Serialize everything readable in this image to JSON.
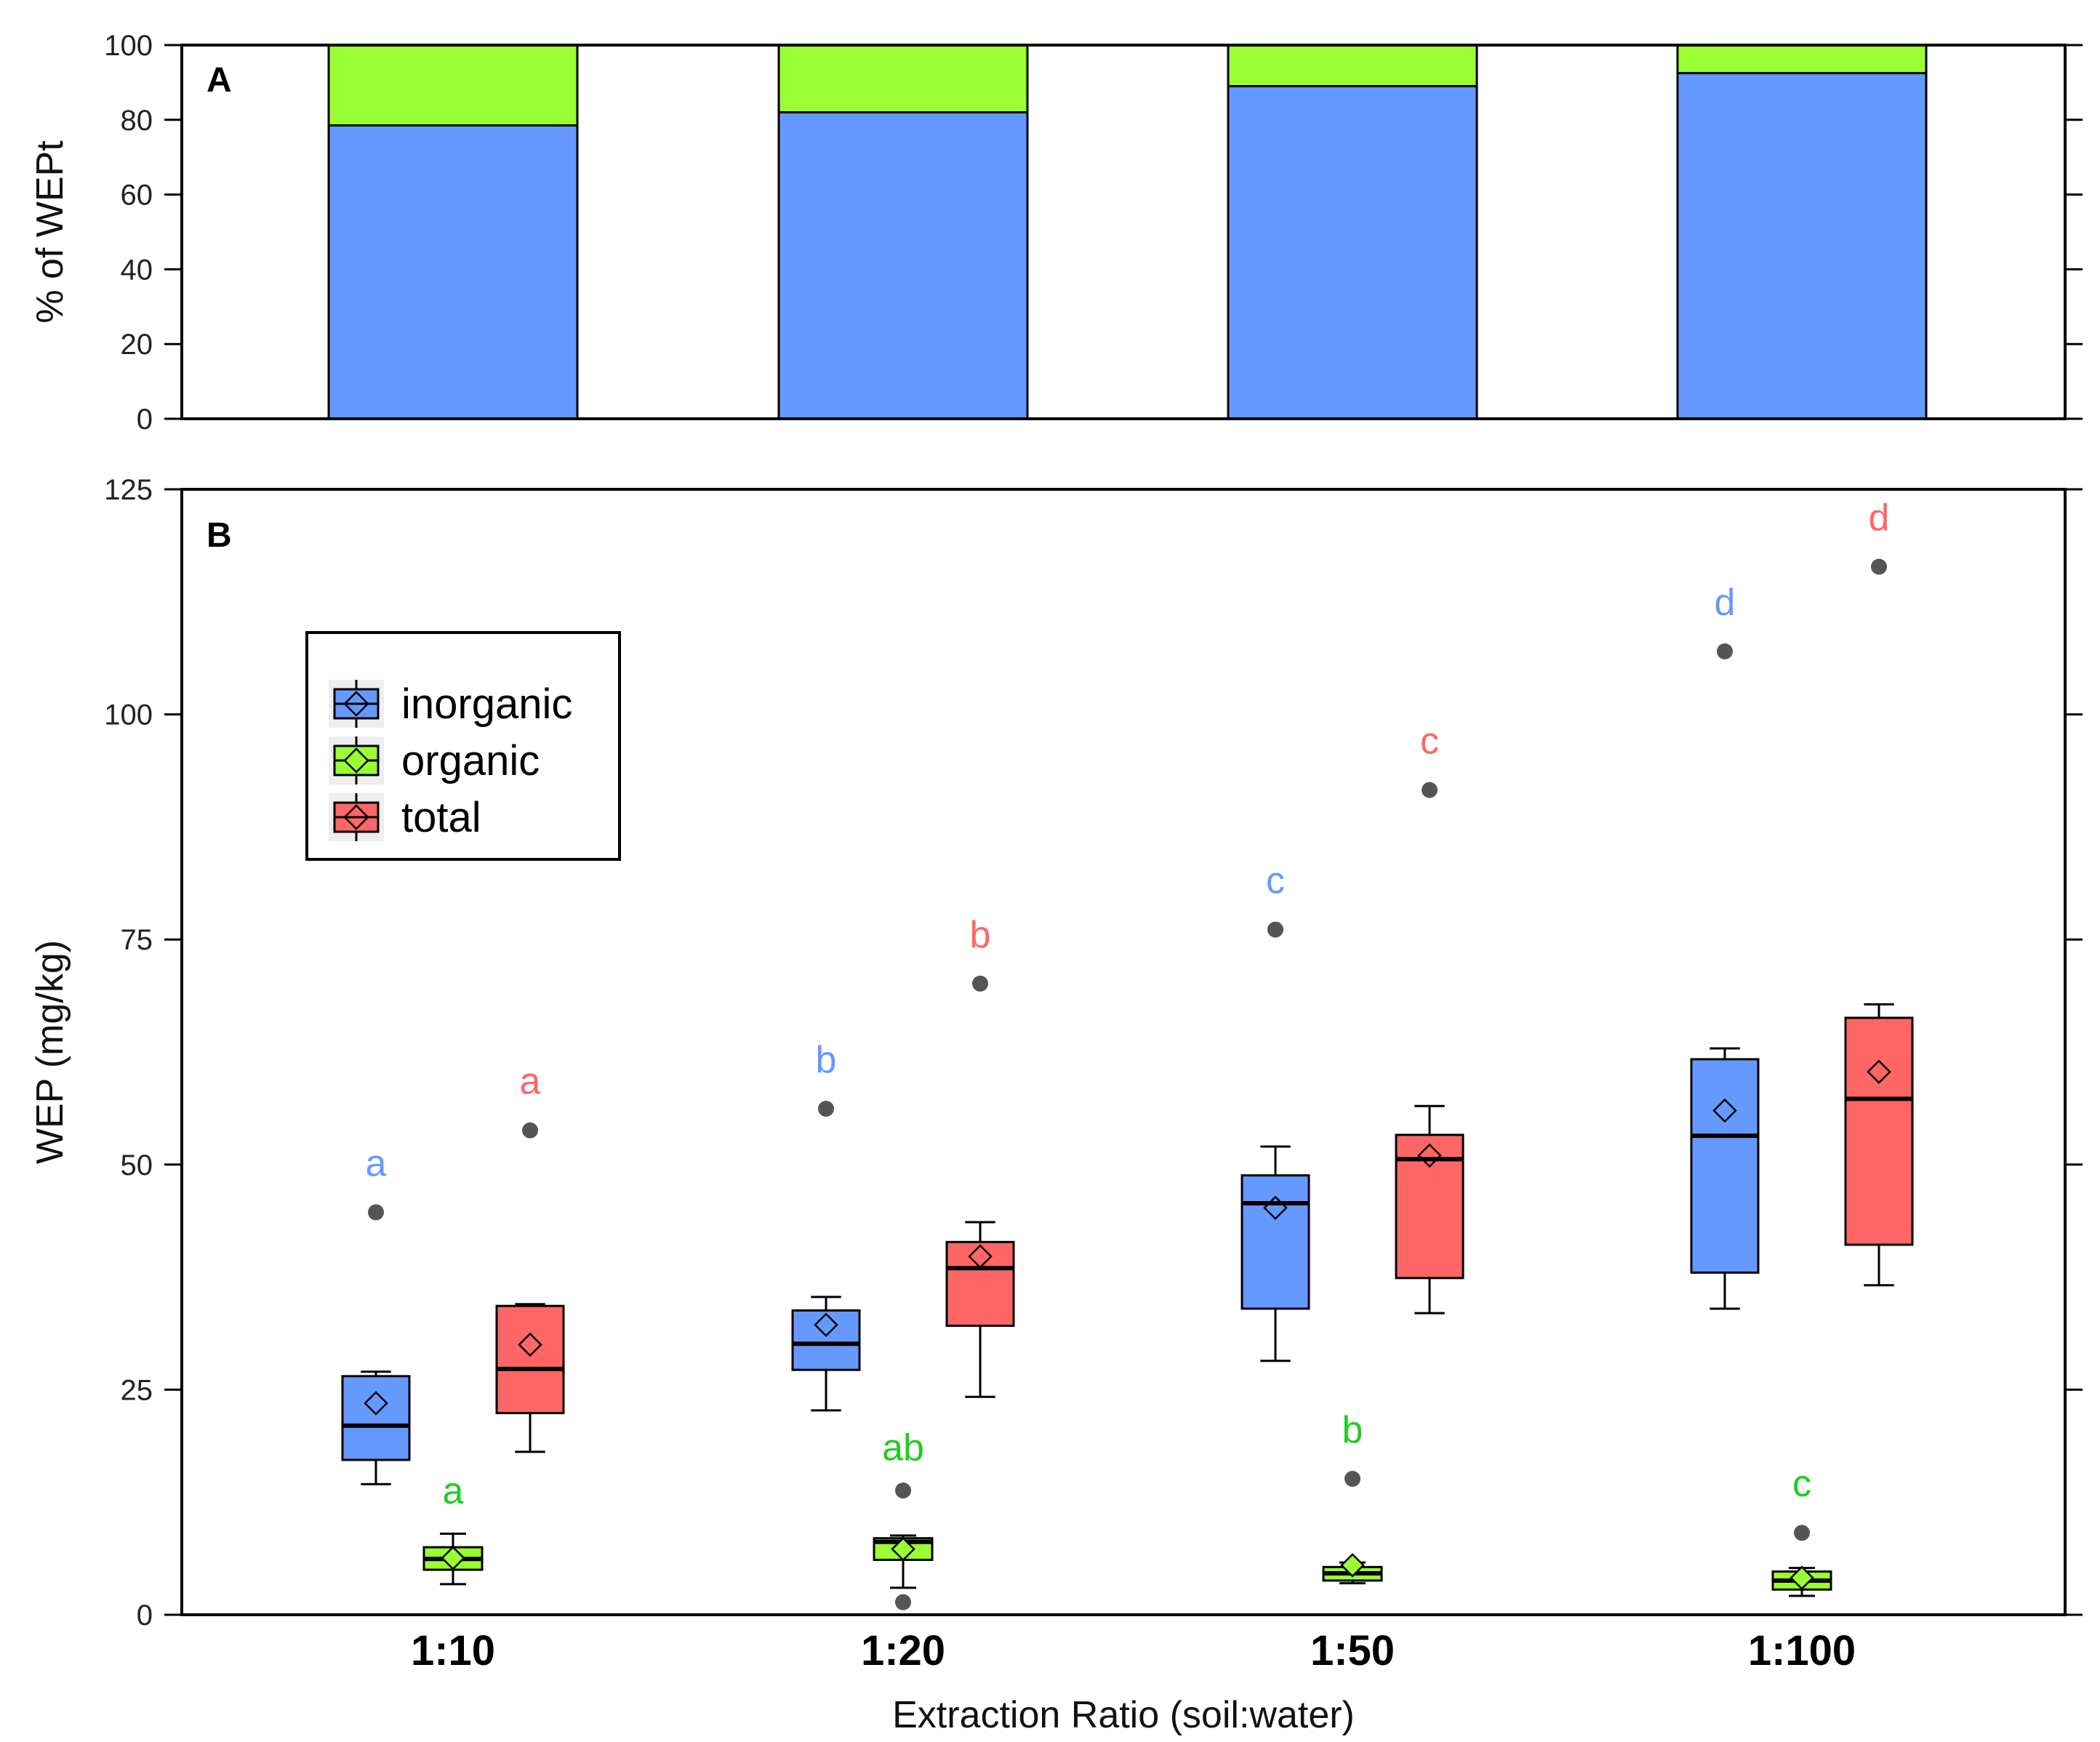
{
  "colors": {
    "inorganic": "#6699FF",
    "organic": "#99FF33",
    "total": "#FF6666",
    "inorganic_letter": "#6699FF",
    "organic_letter": "#22CC22",
    "total_letter": "#FF6666",
    "outlier": "#555555"
  },
  "chart_data": [
    {
      "panel": "A",
      "type": "bar",
      "stacked": true,
      "title": "",
      "xlabel": "",
      "ylabel": "% of WEPt",
      "ylim": [
        0,
        100
      ],
      "yticks": [
        "0",
        "20",
        "40",
        "60",
        "80",
        "100"
      ],
      "categories": [
        "1:10",
        "1:20",
        "1:50",
        "1:100"
      ],
      "series": [
        {
          "name": "inorganic",
          "values": [
            78.5,
            82,
            89,
            92.5
          ]
        },
        {
          "name": "organic",
          "values": [
            21.5,
            18,
            11,
            7.5
          ]
        }
      ]
    },
    {
      "panel": "B",
      "type": "box",
      "title": "",
      "xlabel": "Extraction Ratio (soil:water)",
      "ylabel": "WEP (mg/kg)",
      "ylim": [
        0,
        125
      ],
      "yticks": [
        "0",
        "25",
        "50",
        "75",
        "100",
        "125"
      ],
      "categories": [
        "1:10",
        "1:20",
        "1:50",
        "1:100"
      ],
      "legend": {
        "position": "upper-left",
        "entries": [
          "inorganic",
          "organic",
          "total"
        ]
      },
      "series": [
        {
          "name": "inorganic",
          "boxes": [
            {
              "whisker_low": 14.5,
              "q1": 17.2,
              "median": 21,
              "q3": 26.5,
              "whisker_high": 27,
              "mean": 23.5,
              "outlier": 44.7,
              "letter": "a",
              "letter_y": 50.2
            },
            {
              "whisker_low": 22.7,
              "q1": 27.2,
              "median": 30.1,
              "q3": 33.8,
              "whisker_high": 35.3,
              "mean": 32.2,
              "outlier": 56.2,
              "letter": "b",
              "letter_y": 61.7
            },
            {
              "whisker_low": 28.2,
              "q1": 34,
              "median": 45.7,
              "q3": 48.8,
              "whisker_high": 52,
              "mean": 45.2,
              "outlier": 76.1,
              "letter": "c",
              "letter_y": 81.6
            },
            {
              "whisker_low": 34,
              "q1": 38,
              "median": 53.2,
              "q3": 61.7,
              "whisker_high": 62.9,
              "mean": 56,
              "outlier": 107,
              "letter": "d",
              "letter_y": 112.5
            }
          ]
        },
        {
          "name": "organic",
          "boxes": [
            {
              "whisker_low": 3.4,
              "q1": 5,
              "median": 6.2,
              "q3": 7.5,
              "whisker_high": 9,
              "mean": 6.3,
              "outlier": null,
              "letter": "a",
              "letter_y": 13.8
            },
            {
              "whisker_low": 3,
              "q1": 6.1,
              "median": 8.1,
              "q3": 8.5,
              "whisker_high": 8.8,
              "mean": 7.3,
              "outlier": 13.8,
              "outlier2": 1.4,
              "letter": "ab",
              "letter_y": 18.6
            },
            {
              "whisker_low": 3.5,
              "q1": 3.8,
              "median": 4.6,
              "q3": 5.3,
              "whisker_high": 5.8,
              "mean": 5.5,
              "outlier": 15.1,
              "letter": "b",
              "letter_y": 20.6
            },
            {
              "whisker_low": 2.1,
              "q1": 2.8,
              "median": 3.8,
              "q3": 4.8,
              "whisker_high": 5.2,
              "mean": 4.1,
              "outlier": 9.1,
              "letter": "c",
              "letter_y": 14.6
            }
          ]
        },
        {
          "name": "total",
          "boxes": [
            {
              "whisker_low": 18.1,
              "q1": 22.4,
              "median": 27.3,
              "q3": 34.3,
              "whisker_high": 34.5,
              "mean": 30,
              "outlier": 53.8,
              "letter": "a",
              "letter_y": 59.3
            },
            {
              "whisker_low": 24.2,
              "q1": 32.1,
              "median": 38.5,
              "q3": 41.4,
              "whisker_high": 43.6,
              "mean": 39.8,
              "outlier": 70.1,
              "letter": "b",
              "letter_y": 75.6
            },
            {
              "whisker_low": 33.5,
              "q1": 37.4,
              "median": 50.6,
              "q3": 53.3,
              "whisker_high": 56.5,
              "mean": 51,
              "outlier": 91.6,
              "letter": "c",
              "letter_y": 97.1
            },
            {
              "whisker_low": 36.6,
              "q1": 41.1,
              "median": 57.3,
              "q3": 66.3,
              "whisker_high": 67.8,
              "mean": 60.3,
              "outlier": 116.4,
              "letter": "d",
              "letter_y": 121.9
            }
          ]
        }
      ]
    }
  ]
}
